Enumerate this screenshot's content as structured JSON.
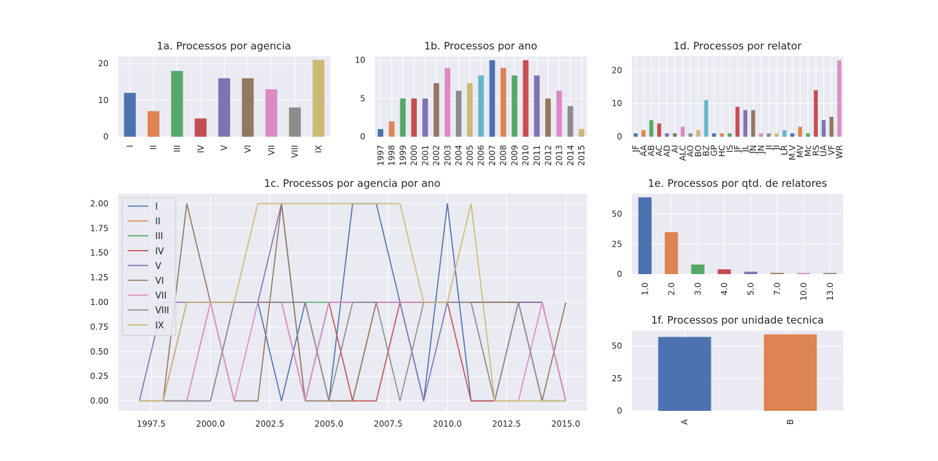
{
  "colors": {
    "palette": [
      "#4c72b0",
      "#dd8452",
      "#55a868",
      "#c44e52",
      "#8172b3",
      "#937860",
      "#da8bc3",
      "#8c8c8c",
      "#ccb974",
      "#64b5cd"
    ],
    "axes_bg": "#eaeaf2",
    "grid": "#ffffff"
  },
  "chart_data": [
    {
      "id": "1a",
      "type": "bar",
      "title": "1a. Processos por agencia",
      "categories": [
        "I",
        "II",
        "III",
        "IV",
        "V",
        "VI",
        "VII",
        "VIII",
        "IX"
      ],
      "values": [
        12,
        7,
        18,
        5,
        16,
        16,
        13,
        8,
        21
      ],
      "ylim": [
        0,
        22
      ],
      "yticks": [
        0,
        10,
        20
      ],
      "grid": true
    },
    {
      "id": "1b",
      "type": "bar",
      "title": "1b. Processos por ano",
      "categories": [
        "1997",
        "1998",
        "1999",
        "2000",
        "2001",
        "2002",
        "2003",
        "2004",
        "2005",
        "2006",
        "2007",
        "2008",
        "2009",
        "2010",
        "2011",
        "2012",
        "2013",
        "2014",
        "2015"
      ],
      "values": [
        1,
        2,
        5,
        5,
        5,
        7,
        9,
        6,
        7,
        8,
        10,
        9,
        8,
        10,
        8,
        5,
        6,
        4,
        1
      ],
      "ylim": [
        0,
        10.5
      ],
      "yticks": [
        0,
        5,
        10
      ],
      "grid": true
    },
    {
      "id": "1d",
      "type": "bar",
      "title": "1d. Processos por relator",
      "categories": [
        "JF",
        "AA",
        "AB",
        "AC",
        "AD",
        "AI",
        "ALC",
        "AO",
        "BO",
        "BZ",
        "GP",
        "HC",
        "IS",
        "JF",
        "JL",
        "JN",
        "JN",
        "JI",
        "JI",
        "LR",
        "M.V",
        "MV",
        "Mc",
        "RS",
        "UA",
        "VF",
        "WR"
      ],
      "values": [
        1,
        2,
        5,
        4,
        1,
        1,
        3,
        1,
        2,
        11,
        1,
        1,
        1,
        9,
        8,
        8,
        1,
        1,
        1,
        2,
        1,
        3,
        1,
        14,
        5,
        6,
        23
      ],
      "ylim": [
        0,
        24.2
      ],
      "yticks": [
        0,
        10,
        20
      ],
      "grid": true
    },
    {
      "id": "1c",
      "type": "line",
      "title": "1c. Processos por agencia por ano",
      "x": [
        1997,
        1998,
        1999,
        2000,
        2001,
        2002,
        2003,
        2004,
        2005,
        2006,
        2007,
        2008,
        2009,
        2010,
        2011,
        2012,
        2013,
        2014,
        2015
      ],
      "xlim": [
        1996.1,
        2015.9
      ],
      "xticks": [
        1997.5,
        2000.0,
        2002.5,
        2005.0,
        2007.5,
        2010.0,
        2012.5,
        2015.0
      ],
      "xtick_labels": [
        "1997.5",
        "2000.0",
        "2002.5",
        "2005.0",
        "2007.5",
        "2010.0",
        "2012.5",
        "2015.0"
      ],
      "ylim": [
        -0.1,
        2.1
      ],
      "yticks": [
        0.0,
        0.25,
        0.5,
        0.75,
        1.0,
        1.25,
        1.5,
        1.75,
        2.0
      ],
      "ytick_labels": [
        "0.00",
        "0.25",
        "0.50",
        "0.75",
        "1.00",
        "1.25",
        "1.50",
        "1.75",
        "2.00"
      ],
      "legend_position": "top-left",
      "grid": true,
      "series": [
        {
          "name": "I",
          "values": [
            0,
            0,
            0,
            0,
            1,
            1,
            0,
            1,
            0,
            2,
            2,
            1,
            0,
            2,
            0,
            0,
            1,
            0,
            0
          ]
        },
        {
          "name": "II",
          "values": [
            0,
            0,
            0,
            1,
            1,
            1,
            1,
            1,
            0,
            0,
            1,
            1,
            1,
            1,
            1,
            1,
            1,
            1,
            0
          ]
        },
        {
          "name": "III",
          "values": [
            0,
            0,
            1,
            1,
            1,
            1,
            1,
            1,
            1,
            1,
            1,
            1,
            1,
            1,
            1,
            1,
            1,
            1,
            0
          ]
        },
        {
          "name": "IV",
          "values": [
            0,
            0,
            1,
            1,
            1,
            1,
            1,
            0,
            1,
            0,
            0,
            1,
            1,
            1,
            0,
            0,
            1,
            1,
            0
          ]
        },
        {
          "name": "V",
          "values": [
            0,
            1,
            1,
            1,
            1,
            1,
            2,
            0,
            1,
            1,
            1,
            1,
            0,
            1,
            1,
            1,
            1,
            1,
            0
          ]
        },
        {
          "name": "VI",
          "values": [
            0,
            0,
            2,
            1,
            0,
            0,
            2,
            0,
            0,
            0,
            1,
            1,
            1,
            1,
            1,
            1,
            1,
            0,
            1
          ]
        },
        {
          "name": "VII",
          "values": [
            0,
            0,
            0,
            1,
            0,
            1,
            1,
            0,
            1,
            1,
            1,
            1,
            1,
            1,
            1,
            0,
            0,
            1,
            0
          ]
        },
        {
          "name": "VIII",
          "values": [
            0,
            0,
            0,
            0,
            1,
            1,
            1,
            1,
            0,
            1,
            1,
            0,
            1,
            1,
            1,
            0,
            1,
            0,
            0
          ]
        },
        {
          "name": "IX",
          "values": [
            0,
            0,
            1,
            1,
            1,
            2,
            2,
            2,
            2,
            2,
            2,
            2,
            1,
            1,
            2,
            0,
            0,
            0,
            0
          ]
        }
      ]
    },
    {
      "id": "1e",
      "type": "bar",
      "title": "1e. Processos por qtd. de relatores",
      "categories": [
        "1.0",
        "2.0",
        "3.0",
        "4.0",
        "5.0",
        "7.0",
        "10.0",
        "13.0"
      ],
      "values": [
        64,
        35,
        8,
        4,
        2,
        1,
        1,
        1
      ],
      "ylim": [
        0,
        67
      ],
      "yticks": [
        0,
        25,
        50
      ],
      "grid": true
    },
    {
      "id": "1f",
      "type": "bar",
      "title": "1f. Processos por unidade tecnica",
      "categories": [
        "A",
        "B"
      ],
      "values": [
        57,
        59
      ],
      "ylim": [
        0,
        62
      ],
      "yticks": [
        0,
        25,
        50
      ],
      "grid": true
    }
  ]
}
